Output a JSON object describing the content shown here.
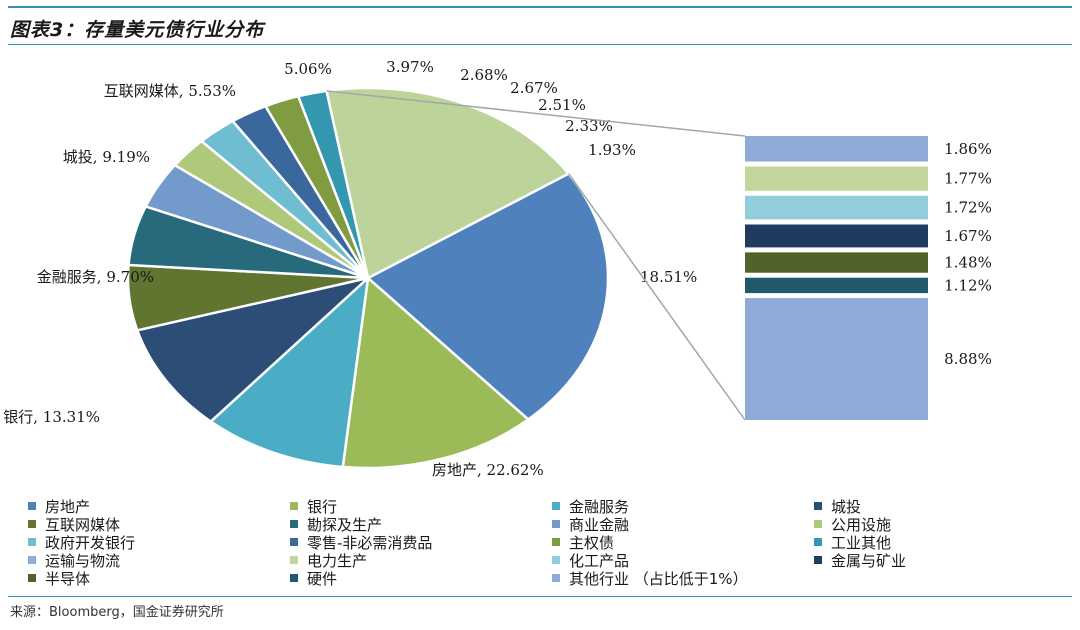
{
  "header": {
    "title": "图表3：存量美元债行业分布"
  },
  "source": "来源：Bloomberg，国金证券研究所",
  "chart_data": {
    "type": "pie",
    "title": "图表3：存量美元债行业分布",
    "slices": [
      {
        "name": "房地产",
        "value": 22.62,
        "label": "房地产, 22.62%",
        "color": "#4f81bd"
      },
      {
        "name": "银行",
        "value": 13.31,
        "label": "银行, 13.31%",
        "color": "#9bbb59"
      },
      {
        "name": "金融服务",
        "value": 9.7,
        "label": "金融服务, 9.70%",
        "color": "#4bacc6"
      },
      {
        "name": "城投",
        "value": 9.19,
        "label": "城投, 9.19%",
        "color": "#2c4d75"
      },
      {
        "name": "互联网媒体",
        "value": 5.53,
        "label": "互联网媒体, 5.53%",
        "color": "#5f7530"
      },
      {
        "name": "勘探及生产",
        "value": 5.06,
        "label": "5.06%",
        "color": "#276a7c"
      },
      {
        "name": "商业金融",
        "value": 3.97,
        "label": "3.97%",
        "color": "#729aca"
      },
      {
        "name": "公用设施",
        "value": 2.68,
        "label": "2.68%",
        "color": "#afc97a"
      },
      {
        "name": "政府开发银行",
        "value": 2.67,
        "label": "2.67%",
        "color": "#6fbdd1"
      },
      {
        "name": "零售-非必需消费品",
        "value": 2.51,
        "label": "2.51%",
        "color": "#3a679c"
      },
      {
        "name": "主权债",
        "value": 2.33,
        "label": "2.33%",
        "color": "#7f9c40"
      },
      {
        "name": "工业其他",
        "value": 1.93,
        "label": "1.93%",
        "color": "#3497b0"
      },
      {
        "name": "其他行业（占比低于1%）",
        "value": 18.51,
        "label": "18.51%",
        "color": "#bcd49a"
      }
    ],
    "breakdown": [
      {
        "name": "运输与物流",
        "value": 1.86,
        "label": "1.86%",
        "color": "#8eaad6"
      },
      {
        "name": "电力生产",
        "value": 1.77,
        "label": "1.77%",
        "color": "#c2d69b"
      },
      {
        "name": "化工产品",
        "value": 1.72,
        "label": "1.72%",
        "color": "#92cddc"
      },
      {
        "name": "金属与矿业",
        "value": 1.67,
        "label": "1.67%",
        "color": "#1f3b60"
      },
      {
        "name": "半导体",
        "value": 1.48,
        "label": "1.48%",
        "color": "#4f6228"
      },
      {
        "name": "硬件",
        "value": 1.12,
        "label": "1.12%",
        "color": "#1e5a6b"
      },
      {
        "name": "其他行业",
        "value": 8.88,
        "label": "8.88%",
        "color": "#8eaad6"
      }
    ]
  },
  "legend": [
    {
      "label": "房地产",
      "color": "#4f81bd"
    },
    {
      "label": "银行",
      "color": "#9bbb59"
    },
    {
      "label": "金融服务",
      "color": "#4bacc6"
    },
    {
      "label": "城投",
      "color": "#2c4d75"
    },
    {
      "label": "互联网媒体",
      "color": "#5f7530"
    },
    {
      "label": "勘探及生产",
      "color": "#276a7c"
    },
    {
      "label": "商业金融",
      "color": "#729aca"
    },
    {
      "label": "公用设施",
      "color": "#afc97a"
    },
    {
      "label": "政府开发银行",
      "color": "#6fbdd1"
    },
    {
      "label": "零售-非必需消费品",
      "color": "#3a679c"
    },
    {
      "label": "主权债",
      "color": "#7f9c40"
    },
    {
      "label": "工业其他",
      "color": "#3497b0"
    },
    {
      "label": "运输与物流",
      "color": "#8eaad6"
    },
    {
      "label": "电力生产",
      "color": "#c2d69b"
    },
    {
      "label": "化工产品",
      "color": "#92cddc"
    },
    {
      "label": "金属与矿业",
      "color": "#1f3b60"
    },
    {
      "label": "半导体",
      "color": "#4f6228"
    },
    {
      "label": "硬件",
      "color": "#1e5a6b"
    },
    {
      "label": "其他行业 （占比低于1%）",
      "color": "#8eaad6"
    }
  ]
}
